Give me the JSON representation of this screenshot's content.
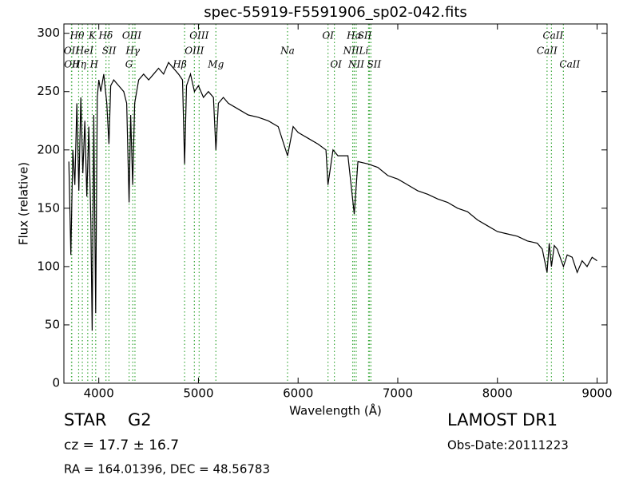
{
  "chart_data": {
    "type": "line",
    "title": "spec-55919-F5591906_sp02-042.fits",
    "x_label": "Wavelength (Å)",
    "y_label": "Flux (relative)",
    "xlim": [
      3650,
      9100
    ],
    "ylim": [
      0,
      308
    ],
    "xticks": [
      4000,
      5000,
      6000,
      7000,
      8000,
      9000
    ],
    "yticks": [
      0,
      50,
      100,
      150,
      200,
      250,
      300
    ],
    "grid": false,
    "color": "#000000",
    "line_color": "#3aa83a",
    "x": [
      3700,
      3720,
      3740,
      3760,
      3780,
      3800,
      3820,
      3840,
      3860,
      3880,
      3900,
      3920,
      3934,
      3950,
      3969,
      3985,
      4000,
      4020,
      4050,
      4080,
      4102,
      4120,
      4150,
      4200,
      4250,
      4280,
      4304,
      4320,
      4340,
      4360,
      4400,
      4450,
      4500,
      4550,
      4600,
      4650,
      4700,
      4750,
      4800,
      4840,
      4861,
      4880,
      4920,
      4960,
      5000,
      5050,
      5100,
      5150,
      5175,
      5200,
      5250,
      5300,
      5400,
      5500,
      5600,
      5700,
      5800,
      5894,
      5950,
      6000,
      6100,
      6200,
      6280,
      6300,
      6350,
      6400,
      6500,
      6563,
      6600,
      6700,
      6800,
      6900,
      7000,
      7100,
      7200,
      7300,
      7400,
      7500,
      7600,
      7700,
      7800,
      7900,
      8000,
      8100,
      8200,
      8300,
      8400,
      8450,
      8498,
      8520,
      8542,
      8570,
      8600,
      8662,
      8700,
      8750,
      8800,
      8850,
      8900,
      8950,
      9000
    ],
    "values": [
      190,
      110,
      200,
      170,
      240,
      165,
      245,
      180,
      225,
      160,
      220,
      140,
      45,
      230,
      60,
      245,
      260,
      250,
      265,
      240,
      205,
      255,
      260,
      255,
      250,
      240,
      155,
      230,
      170,
      240,
      260,
      265,
      260,
      265,
      270,
      265,
      275,
      270,
      265,
      260,
      188,
      255,
      265,
      250,
      255,
      245,
      250,
      245,
      200,
      240,
      245,
      240,
      235,
      230,
      228,
      225,
      220,
      195,
      220,
      215,
      210,
      205,
      200,
      170,
      200,
      195,
      195,
      145,
      190,
      188,
      185,
      178,
      175,
      170,
      165,
      162,
      158,
      155,
      150,
      147,
      140,
      135,
      130,
      128,
      126,
      122,
      120,
      115,
      95,
      120,
      100,
      118,
      115,
      100,
      110,
      108,
      95,
      105,
      100,
      108,
      105
    ],
    "lines": [
      {
        "wavelength": 3726,
        "label": "OII"
      },
      {
        "wavelength": 3729,
        "label": "OII"
      },
      {
        "wavelength": 3798,
        "label": "Hθ"
      },
      {
        "wavelength": 3835,
        "label": "Hη"
      },
      {
        "wavelength": 3889,
        "label": "HeI"
      },
      {
        "wavelength": 3934,
        "label": "K"
      },
      {
        "wavelength": 3969,
        "label": "H"
      },
      {
        "wavelength": 4072,
        "label": "SII"
      },
      {
        "wavelength": 4102,
        "label": "Hδ"
      },
      {
        "wavelength": 4304,
        "label": "G"
      },
      {
        "wavelength": 4341,
        "label": "Hγ"
      },
      {
        "wavelength": 4363,
        "label": "OIII"
      },
      {
        "wavelength": 4861,
        "label": "Hβ"
      },
      {
        "wavelength": 4959,
        "label": "OIII"
      },
      {
        "wavelength": 5007,
        "label": "OIII"
      },
      {
        "wavelength": 5175,
        "label": "Mg"
      },
      {
        "wavelength": 5894,
        "label": "Na"
      },
      {
        "wavelength": 6300,
        "label": "OI"
      },
      {
        "wavelength": 6364,
        "label": "OI"
      },
      {
        "wavelength": 6548,
        "label": "NII"
      },
      {
        "wavelength": 6563,
        "label": "Hα"
      },
      {
        "wavelength": 6583,
        "label": "NII"
      },
      {
        "wavelength": 6707,
        "label": "Li"
      },
      {
        "wavelength": 6716,
        "label": "SII"
      },
      {
        "wavelength": 6731,
        "label": "SII"
      },
      {
        "wavelength": 8498,
        "label": "CaII"
      },
      {
        "wavelength": 8542,
        "label": "CaII"
      },
      {
        "wavelength": 8662,
        "label": "CaII"
      }
    ],
    "info": {
      "object": "STAR",
      "subclass": "G2",
      "redshift": "cz = 17.7 ± 16.7",
      "coords": "RA = 164.01396, DEC = 48.56783",
      "survey": "LAMOST DR1",
      "date": "Obs-Date:20111223"
    }
  }
}
